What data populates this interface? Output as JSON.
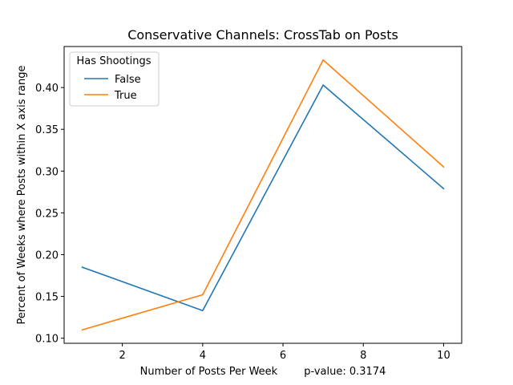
{
  "chart_data": {
    "type": "line",
    "title": "Conservative Channels: CrossTab on Posts",
    "xlabel": "Number of Posts Per Week        p-value: 0.3174",
    "ylabel": "Percent of Weeks where Posts within X axis range",
    "x": [
      1,
      4,
      7,
      10
    ],
    "series": [
      {
        "name": "False",
        "color": "#1f77b4",
        "values": [
          0.185,
          0.133,
          0.403,
          0.279
        ]
      },
      {
        "name": "True",
        "color": "#ff7f0e",
        "values": [
          0.11,
          0.152,
          0.433,
          0.305
        ]
      }
    ],
    "xlim": [
      0.55,
      10.45
    ],
    "ylim": [
      0.0939,
      0.4491
    ],
    "xticks": [
      2,
      4,
      6,
      8,
      10
    ],
    "xtick_labels": [
      "2",
      "4",
      "6",
      "8",
      "10"
    ],
    "yticks": [
      0.1,
      0.15,
      0.2,
      0.25,
      0.3,
      0.35,
      0.4
    ],
    "ytick_labels": [
      "0.10",
      "0.15",
      "0.20",
      "0.25",
      "0.30",
      "0.35",
      "0.40"
    ],
    "grid": false,
    "legend": {
      "title": "Has Shootings",
      "position": "upper-left"
    }
  }
}
